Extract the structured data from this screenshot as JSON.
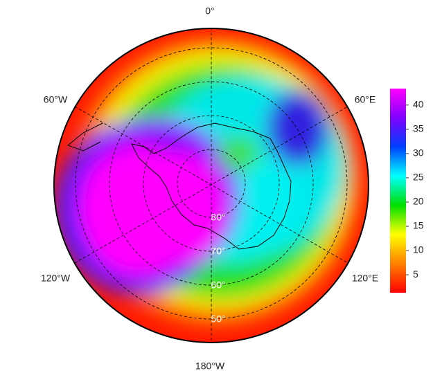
{
  "map": {
    "longitude_labels": [
      "0°",
      "60°E",
      "120°E",
      "180°W",
      "120°W",
      "60°W"
    ],
    "latitude_labels": [
      "80°",
      "70°",
      "60°",
      "50°"
    ],
    "colorbar": {
      "lim": [
        1.3,
        43.4
      ],
      "ticks": [
        5,
        10,
        15,
        20,
        25,
        30,
        35,
        40
      ],
      "colors": [
        "#ff0000",
        "#ff8000",
        "#ffff00",
        "#00e000",
        "#00ffff",
        "#0040ff",
        "#8000ff",
        "#ff00ff"
      ]
    }
  }
}
